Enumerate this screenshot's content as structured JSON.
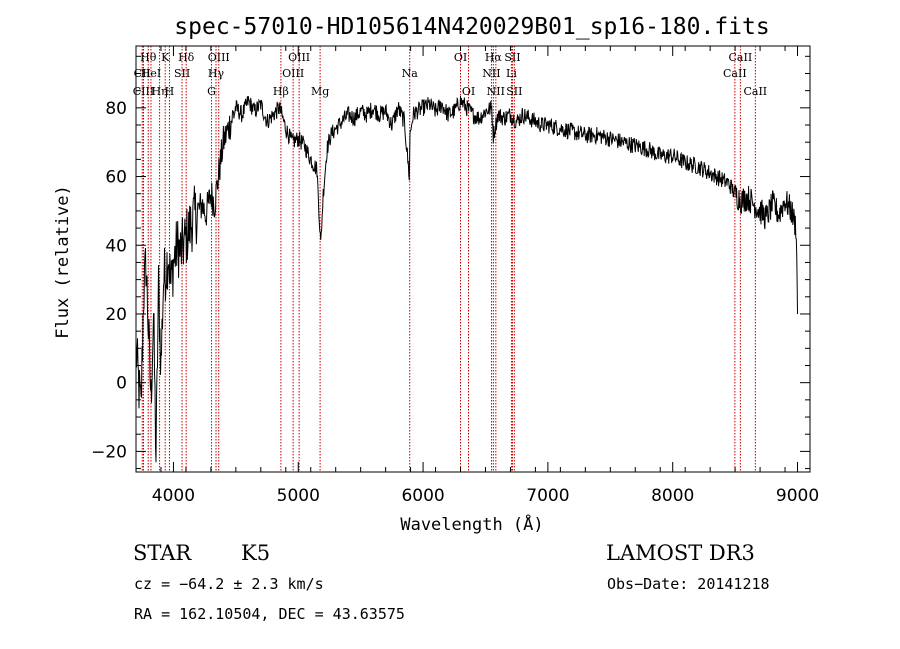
{
  "chart_data": {
    "type": "line",
    "title": "spec-57010-HD105614N420029B01_sp16-180.fits",
    "xlabel": "Wavelength (Å)",
    "ylabel": "Flux (relative)",
    "xlim": [
      3700,
      9100
    ],
    "ylim": [
      -26,
      98
    ],
    "xticks": [
      4000,
      5000,
      6000,
      7000,
      8000,
      9000
    ],
    "yticks": [
      -20,
      0,
      20,
      40,
      60,
      80
    ],
    "series": [
      {
        "name": "flux",
        "x": [
          3700,
          3720,
          3740,
          3760,
          3780,
          3800,
          3820,
          3840,
          3860,
          3880,
          3900,
          3920,
          3940,
          3960,
          3980,
          4000,
          4030,
          4060,
          4100,
          4130,
          4160,
          4200,
          4230,
          4260,
          4300,
          4330,
          4360,
          4400,
          4450,
          4500,
          4550,
          4600,
          4650,
          4700,
          4750,
          4800,
          4850,
          4900,
          4950,
          5000,
          5050,
          5100,
          5150,
          5180,
          5200,
          5230,
          5260,
          5300,
          5350,
          5400,
          5450,
          5500,
          5550,
          5600,
          5650,
          5700,
          5750,
          5800,
          5850,
          5890,
          5895,
          5920,
          5950,
          6000,
          6050,
          6100,
          6150,
          6200,
          6250,
          6300,
          6350,
          6400,
          6450,
          6500,
          6550,
          6563,
          6600,
          6650,
          6700,
          6750,
          6800,
          6850,
          6900,
          6950,
          7000,
          7100,
          7200,
          7300,
          7400,
          7500,
          7600,
          7700,
          7800,
          7900,
          8000,
          8100,
          8200,
          8300,
          8400,
          8450,
          8500,
          8550,
          8600,
          8650,
          8700,
          8750,
          8800,
          8850,
          8900,
          8950,
          8990,
          9000
        ],
        "values": [
          10,
          0,
          -8,
          25,
          35,
          15,
          -5,
          20,
          -22,
          28,
          5,
          30,
          33,
          38,
          28,
          35,
          40,
          38,
          42,
          45,
          48,
          50,
          52,
          49,
          55,
          52,
          60,
          70,
          75,
          80,
          78,
          82,
          79,
          81,
          76,
          78,
          80,
          74,
          70,
          71,
          69,
          65,
          62,
          40,
          55,
          68,
          72,
          74,
          76,
          78,
          77,
          79,
          78,
          80,
          78,
          79,
          75,
          80,
          76,
          60,
          72,
          78,
          79,
          80,
          81,
          79,
          81,
          78,
          79,
          82,
          80,
          78,
          77,
          79,
          80,
          72,
          78,
          77,
          78,
          76,
          78,
          77,
          76,
          75,
          75,
          74,
          73,
          72,
          72,
          71,
          70,
          69,
          68,
          66,
          66,
          64,
          63,
          61,
          59,
          58,
          55,
          53,
          54,
          52,
          50,
          48,
          52,
          49,
          53,
          50,
          45,
          20
        ]
      }
    ],
    "spectral_lines": [
      {
        "label": "Hθ",
        "wave": 3798,
        "row": 0
      },
      {
        "label": "CII",
        "wave": 3750,
        "row": 1
      },
      {
        "label": "CIII",
        "wave": 3760,
        "row": 2
      },
      {
        "label": "K",
        "wave": 3934,
        "row": 0
      },
      {
        "label": "HeI",
        "wave": 3820,
        "row": 1
      },
      {
        "label": "Hη",
        "wave": 3889,
        "row": 2
      },
      {
        "label": "Hδ",
        "wave": 4102,
        "row": 0
      },
      {
        "label": "SII",
        "wave": 4069,
        "row": 1
      },
      {
        "label": "H",
        "wave": 3968,
        "row": 2
      },
      {
        "label": "OIII",
        "wave": 4363,
        "row": 0
      },
      {
        "label": "Hγ",
        "wave": 4341,
        "row": 1
      },
      {
        "label": "G",
        "wave": 4305,
        "row": 2
      },
      {
        "label": "OIII",
        "wave": 5007,
        "row": 0
      },
      {
        "label": "OIII",
        "wave": 4959,
        "row": 1
      },
      {
        "label": "Hβ",
        "wave": 4861,
        "row": 2
      },
      {
        "label": "Mg",
        "wave": 5175,
        "row": 2
      },
      {
        "label": "Na",
        "wave": 5893,
        "row": 1
      },
      {
        "label": "OI",
        "wave": 6300,
        "row": 0
      },
      {
        "label": "OI",
        "wave": 6364,
        "row": 2
      },
      {
        "label": "Hα",
        "wave": 6563,
        "row": 0
      },
      {
        "label": "NII",
        "wave": 6548,
        "row": 1
      },
      {
        "label": "NII",
        "wave": 6583,
        "row": 2
      },
      {
        "label": "SII",
        "wave": 6716,
        "row": 0
      },
      {
        "label": "Li",
        "wave": 6708,
        "row": 1
      },
      {
        "label": "SII",
        "wave": 6731,
        "row": 2
      },
      {
        "label": "CaII",
        "wave": 8542,
        "row": 0
      },
      {
        "label": "CaII",
        "wave": 8498,
        "row": 1
      },
      {
        "label": "CaII",
        "wave": 8662,
        "row": 2
      }
    ]
  },
  "info": {
    "object_class": "STAR",
    "subclass": "K5",
    "survey": "LAMOST DR3",
    "cz": "cz = −64.2 ± 2.3 km/s",
    "obs_date": "Obs−Date: 20141218",
    "coords": "RA = 162.10504, DEC =  43.63575"
  },
  "colors": {
    "spectrum": "#000000",
    "line_marker": "#cc0000",
    "axis": "#000000"
  }
}
